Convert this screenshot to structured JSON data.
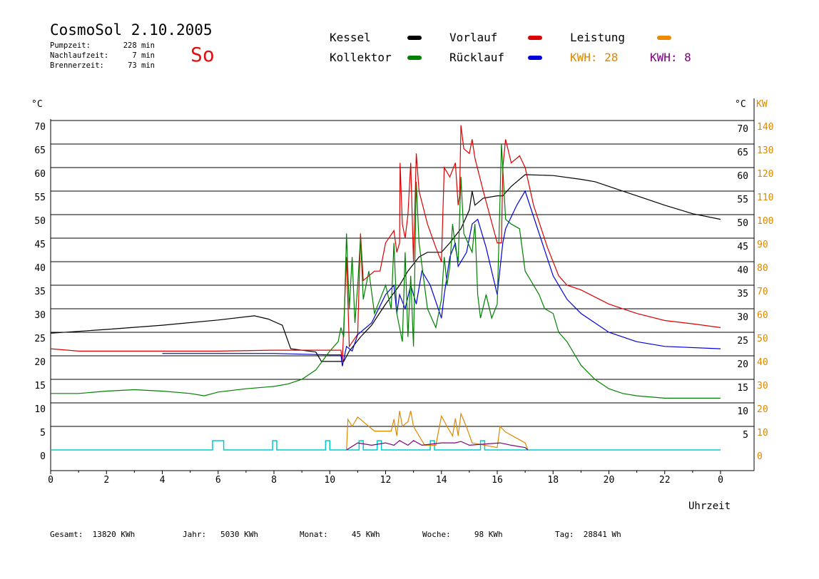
{
  "header": {
    "title": "CosmoSol 2.10.2005",
    "day": "So",
    "stats": [
      {
        "label": "Pumpzeit:",
        "value": "228 min"
      },
      {
        "label": "Nachlaufzeit:",
        "value": "7 min"
      },
      {
        "label": "Brennerzeit:",
        "value": "73 min"
      }
    ]
  },
  "legend": {
    "items": [
      {
        "label": "Kessel",
        "color": "#000000"
      },
      {
        "label": "Vorlauf",
        "color": "#dd0000"
      },
      {
        "label": "Leistung",
        "color": "#ee8800"
      },
      {
        "label": "Kollektor",
        "color": "#008000"
      },
      {
        "label": "Rücklauf",
        "color": "#0000dd"
      }
    ],
    "kwh": [
      {
        "text": "KWH: 28",
        "color": "#dd8800"
      },
      {
        "text": "KWH: 8",
        "color": "#800080"
      }
    ]
  },
  "footer": {
    "gesamt": "Gesamt:  13820 KWh",
    "jahr": "Jahr:   5030 KWh",
    "monat": "Monat:     45 KWh",
    "woche": "Woche:     98 KWh",
    "tag": "Tag:  28841 Wh"
  },
  "chart_data": {
    "type": "line",
    "xlabel": "Uhrzeit",
    "ylabel_left": "°C",
    "ylabel_right_temp": "°C",
    "ylabel_right_power": "KW",
    "xlim": [
      0,
      24
    ],
    "ylim": [
      0,
      70
    ],
    "x_ticks": [
      "0",
      "2",
      "4",
      "6",
      "8",
      "10",
      "12",
      "14",
      "16",
      "18",
      "20",
      "22",
      "0"
    ],
    "y_ticks_left": [
      "0",
      "5",
      "10",
      "15",
      "20",
      "25",
      "30",
      "35",
      "40",
      "45",
      "50",
      "55",
      "60",
      "65",
      "70"
    ],
    "y_ticks_right_temp": [
      "5",
      "10",
      "15",
      "20",
      "25",
      "30",
      "35",
      "40",
      "45",
      "50",
      "55",
      "60",
      "65",
      "70"
    ],
    "y_ticks_right_power": [
      "0",
      "10",
      "20",
      "30",
      "40",
      "50",
      "60",
      "70",
      "80",
      "90",
      "100",
      "110",
      "120",
      "130",
      "140"
    ],
    "grid": true,
    "series": [
      {
        "name": "Kessel",
        "color": "#000000",
        "points": [
          [
            0,
            24.8
          ],
          [
            2,
            25.6
          ],
          [
            4,
            26.5
          ],
          [
            6,
            27.6
          ],
          [
            7.3,
            28.5
          ],
          [
            7.8,
            27.8
          ],
          [
            8.3,
            26.5
          ],
          [
            8.6,
            21.5
          ],
          [
            9.5,
            20.8
          ],
          [
            9.7,
            18.8
          ],
          [
            10.3,
            18.8
          ],
          [
            10.5,
            18.8
          ],
          [
            10.7,
            21
          ],
          [
            11.1,
            24
          ],
          [
            11.5,
            26.5
          ],
          [
            12,
            31
          ],
          [
            12.5,
            35
          ],
          [
            12.8,
            38
          ],
          [
            13.2,
            41
          ],
          [
            13.5,
            42
          ],
          [
            14,
            42
          ],
          [
            14.3,
            44
          ],
          [
            14.7,
            47
          ],
          [
            15,
            51
          ],
          [
            15.1,
            55
          ],
          [
            15.2,
            52
          ],
          [
            15.5,
            53.5
          ],
          [
            16,
            54
          ],
          [
            16.2,
            54
          ],
          [
            16.5,
            56
          ],
          [
            17,
            58.5
          ],
          [
            18,
            58.3
          ],
          [
            19,
            57.5
          ],
          [
            19.5,
            57
          ],
          [
            20,
            56
          ],
          [
            21,
            54
          ],
          [
            22,
            52
          ],
          [
            23,
            50.2
          ],
          [
            24,
            49
          ]
        ]
      },
      {
        "name": "Vorlauf",
        "color": "#dd0000",
        "points": [
          [
            0,
            21.5
          ],
          [
            1,
            21
          ],
          [
            4,
            21
          ],
          [
            6,
            21
          ],
          [
            8,
            21.2
          ],
          [
            10,
            21.2
          ],
          [
            10.4,
            21.2
          ],
          [
            10.45,
            18.8
          ],
          [
            10.6,
            41
          ],
          [
            10.7,
            22
          ],
          [
            11,
            24.6
          ],
          [
            11.1,
            46
          ],
          [
            11.2,
            36
          ],
          [
            11.6,
            38
          ],
          [
            11.8,
            38
          ],
          [
            12,
            44
          ],
          [
            12.3,
            46.6
          ],
          [
            12.4,
            42
          ],
          [
            12.5,
            44
          ],
          [
            12.52,
            61
          ],
          [
            12.6,
            48
          ],
          [
            12.7,
            45
          ],
          [
            12.8,
            50
          ],
          [
            12.9,
            61
          ],
          [
            13.0,
            40
          ],
          [
            13.1,
            63
          ],
          [
            13.2,
            55
          ],
          [
            13.5,
            48
          ],
          [
            13.8,
            43
          ],
          [
            14.0,
            40
          ],
          [
            14.1,
            60
          ],
          [
            14.3,
            58
          ],
          [
            14.5,
            61
          ],
          [
            14.6,
            52
          ],
          [
            14.65,
            54
          ],
          [
            14.7,
            69
          ],
          [
            14.8,
            64
          ],
          [
            15.0,
            63
          ],
          [
            15.1,
            66
          ],
          [
            15.2,
            62
          ],
          [
            15.5,
            55
          ],
          [
            16,
            44
          ],
          [
            16.15,
            44
          ],
          [
            16.2,
            60
          ],
          [
            16.3,
            66
          ],
          [
            16.5,
            61
          ],
          [
            16.8,
            62.5
          ],
          [
            17,
            60
          ],
          [
            17.3,
            52
          ],
          [
            17.8,
            43
          ],
          [
            18.2,
            37
          ],
          [
            18.5,
            35
          ],
          [
            19,
            34
          ],
          [
            20,
            31
          ],
          [
            21,
            29
          ],
          [
            22,
            27.5
          ],
          [
            23,
            26.8
          ],
          [
            24,
            26
          ]
        ]
      },
      {
        "name": "Rücklauf",
        "color": "#0000dd",
        "points": [
          [
            4,
            20.5
          ],
          [
            6,
            20.5
          ],
          [
            8,
            20.5
          ],
          [
            10,
            20.2
          ],
          [
            10.4,
            20.2
          ],
          [
            10.45,
            17.8
          ],
          [
            10.6,
            22
          ],
          [
            10.8,
            21
          ],
          [
            11,
            24.5
          ],
          [
            11.5,
            27
          ],
          [
            12,
            33
          ],
          [
            12.3,
            35
          ],
          [
            12.4,
            29
          ],
          [
            12.5,
            33
          ],
          [
            12.7,
            30
          ],
          [
            12.9,
            35
          ],
          [
            13.1,
            31
          ],
          [
            13.3,
            38
          ],
          [
            13.6,
            35
          ],
          [
            14.0,
            28
          ],
          [
            14.1,
            33
          ],
          [
            14.3,
            41
          ],
          [
            14.5,
            44
          ],
          [
            14.6,
            39
          ],
          [
            14.9,
            42
          ],
          [
            15.1,
            48
          ],
          [
            15.3,
            49
          ],
          [
            15.6,
            43
          ],
          [
            16,
            33
          ],
          [
            16.2,
            44
          ],
          [
            16.3,
            47
          ],
          [
            16.7,
            52
          ],
          [
            17,
            55
          ],
          [
            17.5,
            46
          ],
          [
            18,
            37
          ],
          [
            18.5,
            32
          ],
          [
            19,
            29
          ],
          [
            20,
            25
          ],
          [
            21,
            23
          ],
          [
            22,
            22
          ],
          [
            24,
            21.5
          ]
        ]
      },
      {
        "name": "Kollektor",
        "color": "#008000",
        "points": [
          [
            0,
            12
          ],
          [
            1,
            12
          ],
          [
            2,
            12.5
          ],
          [
            3,
            12.8
          ],
          [
            4,
            12.5
          ],
          [
            5,
            12
          ],
          [
            5.5,
            11.5
          ],
          [
            6,
            12.3
          ],
          [
            7,
            13
          ],
          [
            8,
            13.5
          ],
          [
            8.5,
            14
          ],
          [
            9,
            15
          ],
          [
            9.5,
            17
          ],
          [
            10,
            21
          ],
          [
            10.3,
            23
          ],
          [
            10.4,
            26
          ],
          [
            10.5,
            24
          ],
          [
            10.6,
            46
          ],
          [
            10.7,
            30
          ],
          [
            10.8,
            41
          ],
          [
            10.9,
            27
          ],
          [
            11,
            35
          ],
          [
            11.1,
            45
          ],
          [
            11.2,
            32
          ],
          [
            11.4,
            38
          ],
          [
            11.6,
            29
          ],
          [
            11.8,
            32
          ],
          [
            12,
            35
          ],
          [
            12.2,
            30
          ],
          [
            12.3,
            44
          ],
          [
            12.4,
            29
          ],
          [
            12.6,
            23
          ],
          [
            12.7,
            42
          ],
          [
            12.8,
            24
          ],
          [
            12.9,
            37
          ],
          [
            13.0,
            22
          ],
          [
            13.1,
            57
          ],
          [
            13.2,
            44
          ],
          [
            13.5,
            30
          ],
          [
            13.8,
            26
          ],
          [
            14.0,
            32
          ],
          [
            14.1,
            41
          ],
          [
            14.2,
            35
          ],
          [
            14.3,
            39
          ],
          [
            14.4,
            48
          ],
          [
            14.5,
            43
          ],
          [
            14.6,
            40
          ],
          [
            14.7,
            58
          ],
          [
            14.8,
            46
          ],
          [
            15.1,
            42
          ],
          [
            15.2,
            48
          ],
          [
            15.3,
            33
          ],
          [
            15.4,
            28
          ],
          [
            15.6,
            33
          ],
          [
            15.8,
            28
          ],
          [
            16.0,
            31
          ],
          [
            16.15,
            65
          ],
          [
            16.3,
            49
          ],
          [
            16.5,
            48
          ],
          [
            16.8,
            47
          ],
          [
            17,
            38
          ],
          [
            17.2,
            36
          ],
          [
            17.5,
            33
          ],
          [
            17.7,
            30
          ],
          [
            18,
            29
          ],
          [
            18.2,
            25
          ],
          [
            18.5,
            23
          ],
          [
            18.8,
            20
          ],
          [
            19,
            18
          ],
          [
            19.5,
            15
          ],
          [
            20,
            13
          ],
          [
            20.5,
            12
          ],
          [
            21,
            11.5
          ],
          [
            22,
            11
          ],
          [
            23,
            11
          ],
          [
            24,
            11
          ]
        ]
      },
      {
        "name": "Leistung",
        "color": "#dd8800",
        "points": [
          [
            10.6,
            0
          ],
          [
            10.65,
            6.5
          ],
          [
            10.8,
            5
          ],
          [
            11,
            7
          ],
          [
            11.2,
            6
          ],
          [
            11.6,
            4
          ],
          [
            12,
            4
          ],
          [
            12.2,
            4
          ],
          [
            12.3,
            6.5
          ],
          [
            12.4,
            3
          ],
          [
            12.5,
            8.3
          ],
          [
            12.6,
            5
          ],
          [
            12.8,
            6
          ],
          [
            12.9,
            8.3
          ],
          [
            13.0,
            5
          ],
          [
            13.2,
            3
          ],
          [
            13.4,
            1
          ],
          [
            13.8,
            1
          ],
          [
            14.0,
            7.2
          ],
          [
            14.2,
            5
          ],
          [
            14.4,
            3
          ],
          [
            14.5,
            6.7
          ],
          [
            14.6,
            3
          ],
          [
            14.7,
            7.7
          ],
          [
            14.9,
            4.8
          ],
          [
            15.1,
            1.5
          ],
          [
            16.0,
            0.5
          ],
          [
            16.1,
            5
          ],
          [
            16.3,
            3.8
          ],
          [
            17,
            1.5
          ],
          [
            17.1,
            0
          ]
        ]
      },
      {
        "name": "",
        "color": "#800080",
        "points": [
          [
            10.6,
            0
          ],
          [
            11,
            1.5
          ],
          [
            11.5,
            1
          ],
          [
            12,
            1.5
          ],
          [
            12.3,
            1
          ],
          [
            12.5,
            2
          ],
          [
            12.8,
            1
          ],
          [
            13,
            2
          ],
          [
            13.3,
            1
          ],
          [
            14,
            1.5
          ],
          [
            14.5,
            1.5
          ],
          [
            14.7,
            1.8
          ],
          [
            15,
            1
          ],
          [
            16.1,
            1.5
          ],
          [
            16.5,
            1
          ],
          [
            17,
            0.5
          ],
          [
            17.1,
            0
          ]
        ]
      }
    ],
    "pump_pulses_hours": [
      [
        5.8,
        6.2
      ],
      [
        7.95,
        8.1
      ],
      [
        9.85,
        10.0
      ],
      [
        11.05,
        11.2
      ],
      [
        11.7,
        11.85
      ],
      [
        13.6,
        13.75
      ],
      [
        15.4,
        15.55
      ]
    ],
    "pump_color": "#00cccc"
  }
}
